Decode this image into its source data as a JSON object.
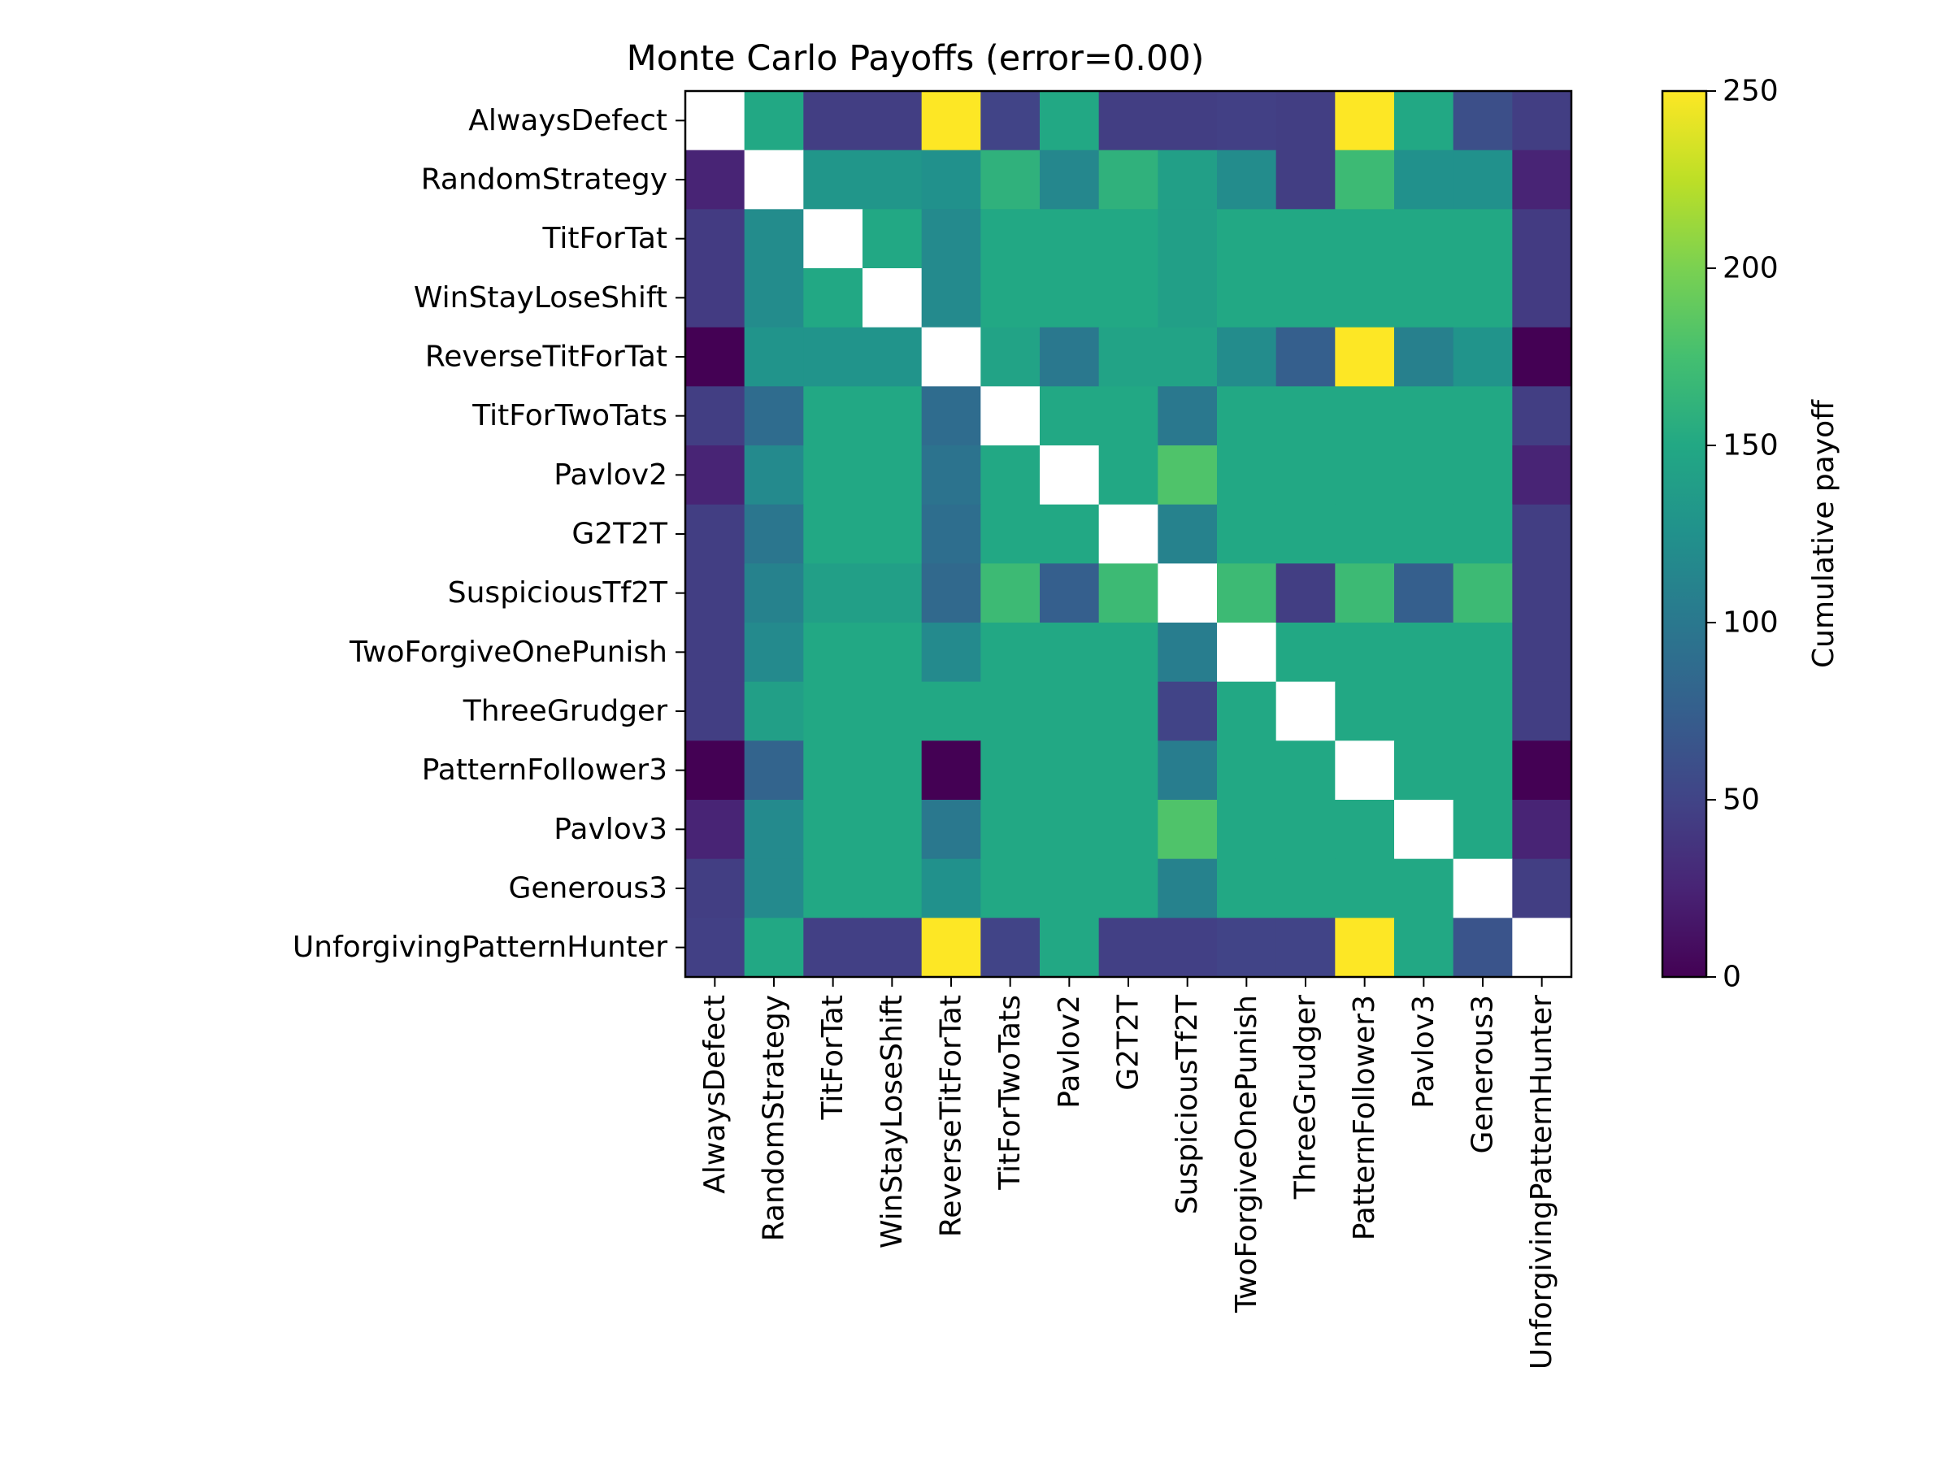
{
  "chart_data": {
    "type": "heatmap",
    "title": "Monte Carlo Payoffs (error=0.00)",
    "xlabel": "",
    "ylabel": "",
    "row_labels": [
      "AlwaysDefect",
      "RandomStrategy",
      "TitForTat",
      "WinStayLoseShift",
      "ReverseTitForTat",
      "TitForTwoTats",
      "Pavlov2",
      "G2T2T",
      "SuspiciousTf2T",
      "TwoForgiveOnePunish",
      "ThreeGrudger",
      "PatternFollower3",
      "Pavlov3",
      "Generous3",
      "UnforgivingPatternHunter"
    ],
    "col_labels": [
      "AlwaysDefect",
      "RandomStrategy",
      "TitForTat",
      "WinStayLoseShift",
      "ReverseTitForTat",
      "TitForTwoTats",
      "Pavlov2",
      "G2T2T",
      "SuspiciousTf2T",
      "TwoForgiveOnePunish",
      "ThreeGrudger",
      "PatternFollower3",
      "Pavlov3",
      "Generous3",
      "UnforgivingPatternHunter"
    ],
    "values": [
      [
        null,
        150,
        45,
        45,
        250,
        50,
        150,
        45,
        45,
        47,
        45,
        250,
        150,
        60,
        45
      ],
      [
        25,
        null,
        130,
        130,
        125,
        160,
        115,
        160,
        140,
        120,
        45,
        170,
        125,
        125,
        25
      ],
      [
        43,
        120,
        null,
        150,
        118,
        150,
        150,
        150,
        140,
        150,
        150,
        150,
        150,
        150,
        43
      ],
      [
        43,
        120,
        150,
        null,
        118,
        150,
        150,
        150,
        140,
        150,
        150,
        150,
        150,
        150,
        43
      ],
      [
        0,
        128,
        128,
        128,
        null,
        145,
        100,
        145,
        145,
        120,
        75,
        250,
        108,
        128,
        0
      ],
      [
        45,
        88,
        150,
        150,
        88,
        null,
        150,
        150,
        100,
        150,
        150,
        150,
        150,
        150,
        45
      ],
      [
        25,
        118,
        150,
        150,
        95,
        150,
        null,
        150,
        180,
        150,
        150,
        150,
        150,
        150,
        25
      ],
      [
        45,
        98,
        150,
        150,
        90,
        150,
        150,
        null,
        110,
        150,
        150,
        150,
        150,
        150,
        45
      ],
      [
        45,
        110,
        140,
        140,
        85,
        170,
        75,
        170,
        null,
        170,
        45,
        170,
        75,
        170,
        45
      ],
      [
        45,
        118,
        150,
        150,
        118,
        150,
        150,
        150,
        105,
        null,
        150,
        150,
        150,
        150,
        45
      ],
      [
        45,
        140,
        150,
        150,
        150,
        150,
        150,
        150,
        50,
        150,
        null,
        150,
        150,
        150,
        45
      ],
      [
        0,
        80,
        150,
        150,
        0,
        150,
        150,
        150,
        105,
        150,
        150,
        null,
        150,
        150,
        0
      ],
      [
        25,
        118,
        150,
        150,
        100,
        150,
        150,
        150,
        180,
        150,
        150,
        150,
        null,
        150,
        25
      ],
      [
        45,
        118,
        150,
        150,
        125,
        150,
        150,
        150,
        110,
        150,
        150,
        150,
        150,
        null,
        45
      ],
      [
        47,
        150,
        47,
        47,
        250,
        50,
        150,
        47,
        47,
        50,
        50,
        250,
        150,
        65,
        null
      ]
    ],
    "colormap": "viridis",
    "vmin": 0,
    "vmax": 250,
    "colorbar": {
      "label": "Cumulative payoff",
      "ticks": [
        0,
        50,
        100,
        150,
        200,
        250
      ]
    },
    "missing_color": "#ffffff"
  }
}
